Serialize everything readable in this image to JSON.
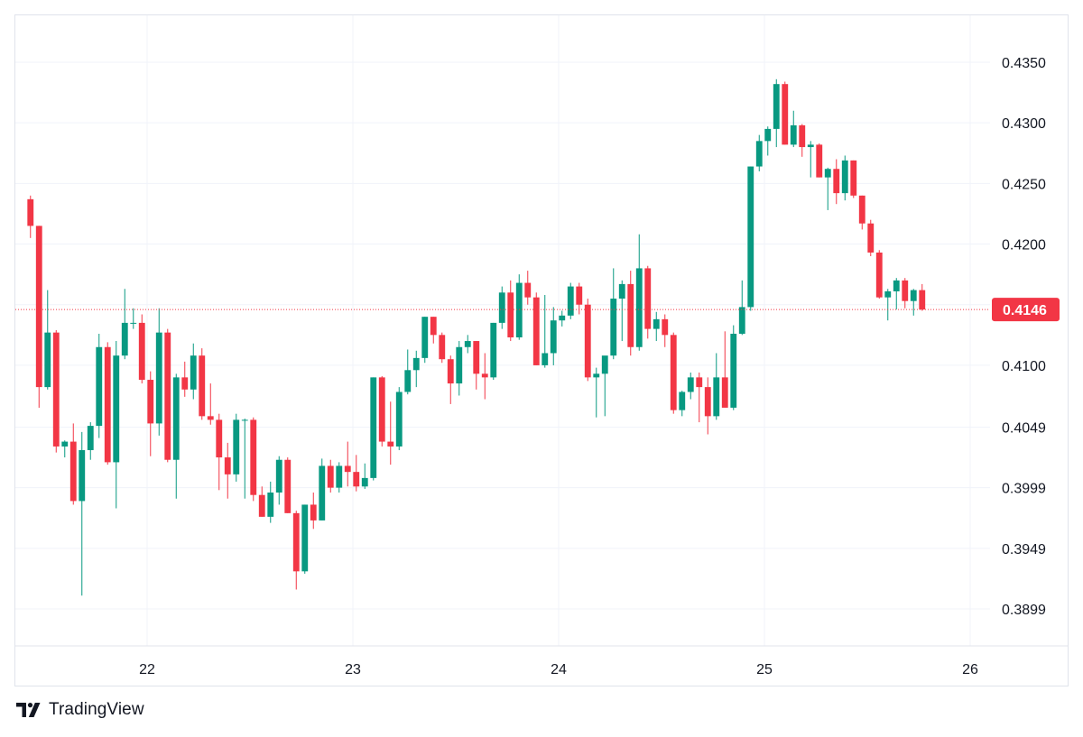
{
  "branding": {
    "logo_icon": "tradingview-logo-icon",
    "name": "TradingView"
  },
  "colors": {
    "up": "#089981",
    "down": "#f23645",
    "grid": "#f0f3fa",
    "axis_text": "#131722",
    "price_line": "#f23645"
  },
  "chart_data": {
    "type": "candlestick",
    "x_axis": {
      "ticks": [
        "22",
        "23",
        "24",
        "25",
        "26"
      ],
      "tick_positions_in_days": [
        22,
        23,
        24,
        25,
        26
      ],
      "range": [
        21.42,
        26.1
      ]
    },
    "y_axis": {
      "ticks": [
        "0.3899",
        "0.3949",
        "0.3999",
        "0.4049",
        "0.4100",
        "0.4150",
        "0.4200",
        "0.4250",
        "0.4300",
        "0.4350"
      ],
      "tick_values": [
        0.3899,
        0.3949,
        0.3999,
        0.4049,
        0.41,
        0.415,
        0.42,
        0.425,
        0.43,
        0.435
      ],
      "range": [
        0.3868,
        0.439
      ]
    },
    "last_price": "0.4146",
    "grid": true,
    "interval_hours": 1,
    "first_candle_day": 21.42,
    "candles": [
      [
        0.4237,
        0.424,
        0.4205,
        0.4215
      ],
      [
        0.4215,
        0.4215,
        0.4065,
        0.4082
      ],
      [
        0.4082,
        0.4162,
        0.408,
        0.4127
      ],
      [
        0.4127,
        0.4129,
        0.4028,
        0.4033
      ],
      [
        0.4033,
        0.4038,
        0.4024,
        0.4037
      ],
      [
        0.4037,
        0.4052,
        0.3985,
        0.3988
      ],
      [
        0.3988,
        0.4045,
        0.391,
        0.403
      ],
      [
        0.403,
        0.4053,
        0.4022,
        0.405
      ],
      [
        0.405,
        0.4126,
        0.404,
        0.4115
      ],
      [
        0.4115,
        0.4119,
        0.4018,
        0.402
      ],
      [
        0.402,
        0.412,
        0.3982,
        0.4108
      ],
      [
        0.4108,
        0.4163,
        0.4105,
        0.4135
      ],
      [
        0.4135,
        0.4147,
        0.413,
        0.4135
      ],
      [
        0.4135,
        0.4142,
        0.4085,
        0.4088
      ],
      [
        0.4088,
        0.4095,
        0.4025,
        0.4052
      ],
      [
        0.4052,
        0.4147,
        0.4042,
        0.4127
      ],
      [
        0.4127,
        0.413,
        0.402,
        0.4022
      ],
      [
        0.4022,
        0.4093,
        0.399,
        0.409
      ],
      [
        0.409,
        0.4103,
        0.4074,
        0.408
      ],
      [
        0.408,
        0.4118,
        0.4072,
        0.4108
      ],
      [
        0.4108,
        0.4114,
        0.4055,
        0.4058
      ],
      [
        0.4058,
        0.4085,
        0.4051,
        0.4055
      ],
      [
        0.4055,
        0.406,
        0.3997,
        0.4024
      ],
      [
        0.4024,
        0.4036,
        0.399,
        0.401
      ],
      [
        0.401,
        0.406,
        0.4004,
        0.4055
      ],
      [
        0.4055,
        0.4056,
        0.399,
        0.4055
      ],
      [
        0.4055,
        0.4057,
        0.3988,
        0.3993
      ],
      [
        0.3993,
        0.4,
        0.3975,
        0.3975
      ],
      [
        0.3975,
        0.4004,
        0.397,
        0.3995
      ],
      [
        0.3995,
        0.4025,
        0.3985,
        0.4022
      ],
      [
        0.4022,
        0.4024,
        0.3978,
        0.3978
      ],
      [
        0.3978,
        0.398,
        0.3915,
        0.393
      ],
      [
        0.393,
        0.3985,
        0.3928,
        0.3985
      ],
      [
        0.3985,
        0.3995,
        0.3965,
        0.3972
      ],
      [
        0.3972,
        0.4023,
        0.3972,
        0.4017
      ],
      [
        0.4017,
        0.4022,
        0.3995,
        0.3999
      ],
      [
        0.3999,
        0.402,
        0.3995,
        0.4017
      ],
      [
        0.4017,
        0.4037,
        0.4,
        0.4012
      ],
      [
        0.4012,
        0.4026,
        0.3996,
        0.4
      ],
      [
        0.4,
        0.4019,
        0.3998,
        0.4007
      ],
      [
        0.4007,
        0.409,
        0.4005,
        0.409
      ],
      [
        0.409,
        0.4091,
        0.4033,
        0.4037
      ],
      [
        0.4037,
        0.407,
        0.4018,
        0.4033
      ],
      [
        0.4033,
        0.4082,
        0.403,
        0.4078
      ],
      [
        0.4078,
        0.4113,
        0.4076,
        0.4096
      ],
      [
        0.4096,
        0.4112,
        0.4082,
        0.4106
      ],
      [
        0.4106,
        0.414,
        0.4102,
        0.414
      ],
      [
        0.414,
        0.414,
        0.4118,
        0.4125
      ],
      [
        0.4125,
        0.4127,
        0.4102,
        0.4105
      ],
      [
        0.4105,
        0.4108,
        0.4068,
        0.4085
      ],
      [
        0.4085,
        0.412,
        0.4075,
        0.4115
      ],
      [
        0.4115,
        0.4125,
        0.411,
        0.412
      ],
      [
        0.412,
        0.412,
        0.408,
        0.4093
      ],
      [
        0.4093,
        0.411,
        0.4072,
        0.409
      ],
      [
        0.409,
        0.4135,
        0.4088,
        0.4135
      ],
      [
        0.4135,
        0.4165,
        0.413,
        0.416
      ],
      [
        0.416,
        0.417,
        0.412,
        0.4123
      ],
      [
        0.4123,
        0.4175,
        0.4121,
        0.4168
      ],
      [
        0.4168,
        0.4178,
        0.415,
        0.4156
      ],
      [
        0.4156,
        0.416,
        0.41,
        0.41
      ],
      [
        0.41,
        0.4158,
        0.4098,
        0.411
      ],
      [
        0.411,
        0.4148,
        0.41,
        0.4137
      ],
      [
        0.4137,
        0.4145,
        0.4132,
        0.4141
      ],
      [
        0.4141,
        0.4168,
        0.4138,
        0.4165
      ],
      [
        0.4165,
        0.4168,
        0.4142,
        0.415
      ],
      [
        0.415,
        0.4155,
        0.4087,
        0.409
      ],
      [
        0.409,
        0.4098,
        0.4057,
        0.4093
      ],
      [
        0.4093,
        0.4104,
        0.4058,
        0.4108
      ],
      [
        0.4108,
        0.418,
        0.4105,
        0.4155
      ],
      [
        0.4155,
        0.417,
        0.412,
        0.4167
      ],
      [
        0.4167,
        0.4178,
        0.4108,
        0.4115
      ],
      [
        0.4115,
        0.4208,
        0.4112,
        0.418
      ],
      [
        0.418,
        0.4182,
        0.4122,
        0.413
      ],
      [
        0.413,
        0.4144,
        0.412,
        0.4138
      ],
      [
        0.4138,
        0.4142,
        0.4115,
        0.4125
      ],
      [
        0.4125,
        0.4127,
        0.406,
        0.4063
      ],
      [
        0.4063,
        0.4079,
        0.4058,
        0.4078
      ],
      [
        0.4078,
        0.4094,
        0.4072,
        0.409
      ],
      [
        0.409,
        0.4094,
        0.4053,
        0.4082
      ],
      [
        0.4082,
        0.409,
        0.4043,
        0.4058
      ],
      [
        0.4058,
        0.411,
        0.4055,
        0.409
      ],
      [
        0.409,
        0.4128,
        0.4065,
        0.4065
      ],
      [
        0.4065,
        0.4133,
        0.4063,
        0.4126
      ],
      [
        0.4126,
        0.417,
        0.4125,
        0.4148
      ],
      [
        0.4148,
        0.4264,
        0.4145,
        0.4264
      ],
      [
        0.4264,
        0.429,
        0.426,
        0.4285
      ],
      [
        0.4285,
        0.4297,
        0.4273,
        0.4295
      ],
      [
        0.4295,
        0.4336,
        0.428,
        0.4332
      ],
      [
        0.4332,
        0.4334,
        0.4282,
        0.4282
      ],
      [
        0.4282,
        0.431,
        0.428,
        0.4298
      ],
      [
        0.4298,
        0.4299,
        0.4272,
        0.428
      ],
      [
        0.428,
        0.4285,
        0.4255,
        0.4282
      ],
      [
        0.4282,
        0.4283,
        0.4255,
        0.4255
      ],
      [
        0.4255,
        0.4263,
        0.4228,
        0.4262
      ],
      [
        0.4262,
        0.427,
        0.4233,
        0.4242
      ],
      [
        0.4242,
        0.4273,
        0.4236,
        0.4269
      ],
      [
        0.4269,
        0.4269,
        0.4238,
        0.424
      ],
      [
        0.424,
        0.424,
        0.4212,
        0.4217
      ],
      [
        0.4217,
        0.422,
        0.419,
        0.4193
      ],
      [
        0.4193,
        0.4195,
        0.4155,
        0.4156
      ],
      [
        0.4156,
        0.4163,
        0.4137,
        0.4161
      ],
      [
        0.4161,
        0.4172,
        0.4146,
        0.417
      ],
      [
        0.417,
        0.4172,
        0.4147,
        0.4153
      ],
      [
        0.4153,
        0.4163,
        0.4141,
        0.4162
      ],
      [
        0.4162,
        0.4167,
        0.4145,
        0.4146
      ]
    ]
  }
}
